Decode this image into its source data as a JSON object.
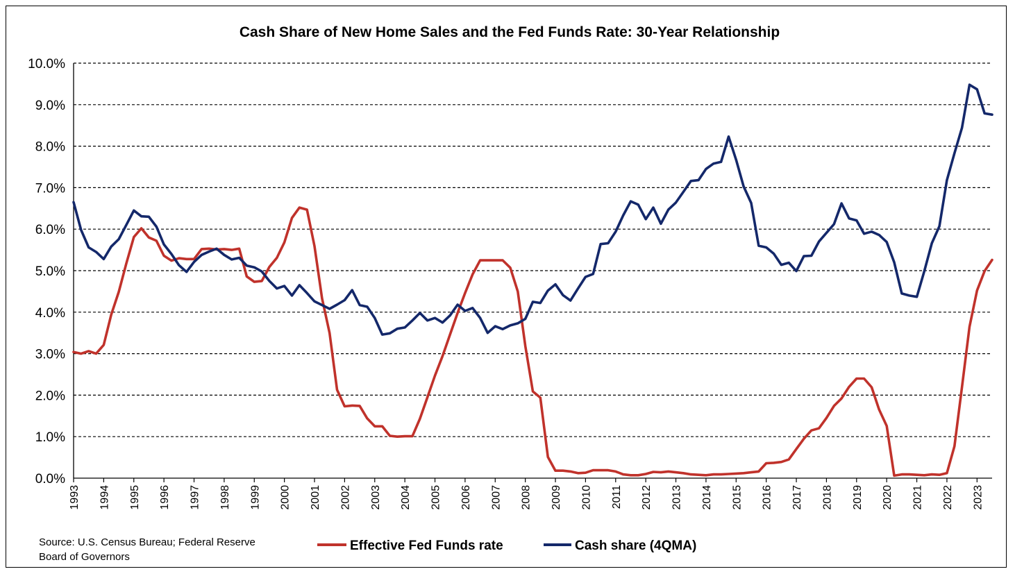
{
  "chart_data": {
    "type": "line",
    "title": "Cash Share of New Home Sales and the Fed Funds Rate: 30-Year Relationship",
    "ylim": [
      0,
      10
    ],
    "y_ticks": [
      "0.0%",
      "1.0%",
      "2.0%",
      "3.0%",
      "4.0%",
      "5.0%",
      "6.0%",
      "7.0%",
      "8.0%",
      "9.0%",
      "10.0%"
    ],
    "x_ticks": [
      "1993",
      "1994",
      "1995",
      "1996",
      "1997",
      "1998",
      "1999",
      "2000",
      "2001",
      "2002",
      "2003",
      "2004",
      "2005",
      "2006",
      "2007",
      "2008",
      "2009",
      "2010",
      "2011",
      "2012",
      "2013",
      "2014",
      "2015",
      "2016",
      "2017",
      "2018",
      "2019",
      "2020",
      "2021",
      "2022",
      "2023"
    ],
    "xlim": [
      1993.0,
      2023.5
    ],
    "grid": "horizontal-dashed",
    "legend_placement": "bottom",
    "source_lines": [
      "Source: U.S. Census Bureau; Federal Reserve",
      "Board of Governors"
    ],
    "series": [
      {
        "name": "Effective Fed Funds rate",
        "color": "#c0322b",
        "x": [
          1993.0,
          1993.25,
          1993.5,
          1993.75,
          1994.0,
          1994.25,
          1994.5,
          1994.75,
          1995.0,
          1995.25,
          1995.5,
          1995.75,
          1996.0,
          1996.25,
          1996.5,
          1996.75,
          1997.0,
          1997.25,
          1997.5,
          1997.75,
          1998.0,
          1998.25,
          1998.5,
          1998.75,
          1999.0,
          1999.25,
          1999.5,
          1999.75,
          2000.0,
          2000.25,
          2000.5,
          2000.75,
          2001.0,
          2001.25,
          2001.5,
          2001.75,
          2002.0,
          2002.25,
          2002.5,
          2002.75,
          2003.0,
          2003.25,
          2003.5,
          2003.75,
          2004.0,
          2004.25,
          2004.5,
          2004.75,
          2005.0,
          2005.25,
          2005.5,
          2005.75,
          2006.0,
          2006.25,
          2006.5,
          2006.75,
          2007.0,
          2007.25,
          2007.5,
          2007.75,
          2008.0,
          2008.25,
          2008.5,
          2008.75,
          2009.0,
          2009.25,
          2009.5,
          2009.75,
          2010.0,
          2010.25,
          2010.5,
          2010.75,
          2011.0,
          2011.25,
          2011.5,
          2011.75,
          2012.0,
          2012.25,
          2012.5,
          2012.75,
          2013.0,
          2013.25,
          2013.5,
          2013.75,
          2014.0,
          2014.25,
          2014.5,
          2014.75,
          2015.0,
          2015.25,
          2015.5,
          2015.75,
          2016.0,
          2016.25,
          2016.5,
          2016.75,
          2017.0,
          2017.25,
          2017.5,
          2017.75,
          2018.0,
          2018.25,
          2018.5,
          2018.75,
          2019.0,
          2019.25,
          2019.5,
          2019.75,
          2020.0,
          2020.25,
          2020.5,
          2020.75,
          2021.0,
          2021.25,
          2021.5,
          2021.75,
          2022.0,
          2022.25,
          2022.5,
          2022.75,
          2023.0,
          2023.25,
          2023.5
        ],
        "values": [
          3.04,
          3.0,
          3.06,
          3.0,
          3.21,
          3.94,
          4.49,
          5.17,
          5.81,
          6.02,
          5.8,
          5.72,
          5.36,
          5.24,
          5.3,
          5.28,
          5.28,
          5.52,
          5.53,
          5.51,
          5.52,
          5.5,
          5.53,
          4.86,
          4.73,
          4.75,
          5.09,
          5.31,
          5.68,
          6.27,
          6.52,
          6.47,
          5.59,
          4.33,
          3.5,
          2.13,
          1.73,
          1.75,
          1.74,
          1.44,
          1.25,
          1.25,
          1.02,
          1.0,
          1.01,
          1.01,
          1.43,
          1.95,
          2.47,
          2.94,
          3.46,
          3.98,
          4.46,
          4.91,
          5.25,
          5.25,
          5.25,
          5.25,
          5.07,
          4.5,
          3.18,
          2.09,
          1.94,
          0.51,
          0.18,
          0.18,
          0.16,
          0.12,
          0.13,
          0.19,
          0.19,
          0.19,
          0.16,
          0.09,
          0.07,
          0.07,
          0.1,
          0.15,
          0.14,
          0.16,
          0.14,
          0.12,
          0.09,
          0.08,
          0.07,
          0.09,
          0.09,
          0.1,
          0.11,
          0.12,
          0.14,
          0.16,
          0.36,
          0.37,
          0.39,
          0.45,
          0.7,
          0.95,
          1.15,
          1.2,
          1.45,
          1.74,
          1.92,
          2.2,
          2.4,
          2.4,
          2.19,
          1.65,
          1.26,
          0.06,
          0.09,
          0.09,
          0.08,
          0.07,
          0.09,
          0.08,
          0.12,
          0.77,
          2.19,
          3.65,
          4.52,
          4.99,
          5.26
        ]
      },
      {
        "name": "Cash share (4QMA)",
        "color": "#14286a",
        "x": [
          1993.0,
          1993.25,
          1993.5,
          1993.75,
          1994.0,
          1994.25,
          1994.5,
          1994.75,
          1995.0,
          1995.25,
          1995.5,
          1995.75,
          1996.0,
          1996.25,
          1996.5,
          1996.75,
          1997.0,
          1997.25,
          1997.5,
          1997.75,
          1998.0,
          1998.25,
          1998.5,
          1998.75,
          1999.0,
          1999.25,
          1999.5,
          1999.75,
          2000.0,
          2000.25,
          2000.5,
          2000.75,
          2001.0,
          2001.25,
          2001.5,
          2001.75,
          2002.0,
          2002.25,
          2002.5,
          2002.75,
          2003.0,
          2003.25,
          2003.5,
          2003.75,
          2004.0,
          2004.25,
          2004.5,
          2004.75,
          2005.0,
          2005.25,
          2005.5,
          2005.75,
          2006.0,
          2006.25,
          2006.5,
          2006.75,
          2007.0,
          2007.25,
          2007.5,
          2007.75,
          2008.0,
          2008.25,
          2008.5,
          2008.75,
          2009.0,
          2009.25,
          2009.5,
          2009.75,
          2010.0,
          2010.25,
          2010.5,
          2010.75,
          2011.0,
          2011.25,
          2011.5,
          2011.75,
          2012.0,
          2012.25,
          2012.5,
          2012.75,
          2013.0,
          2013.25,
          2013.5,
          2013.75,
          2014.0,
          2014.25,
          2014.5,
          2014.75,
          2015.0,
          2015.25,
          2015.5,
          2015.75,
          2016.0,
          2016.25,
          2016.5,
          2016.75,
          2017.0,
          2017.25,
          2017.5,
          2017.75,
          2018.0,
          2018.25,
          2018.5,
          2018.75,
          2019.0,
          2019.25,
          2019.5,
          2019.75,
          2020.0,
          2020.25,
          2020.5,
          2020.75,
          2021.0,
          2021.25,
          2021.5,
          2021.75,
          2022.0,
          2022.25,
          2022.5,
          2022.75,
          2023.0,
          2023.25,
          2023.5
        ],
        "values": [
          6.65,
          5.98,
          5.56,
          5.45,
          5.28,
          5.58,
          5.76,
          6.1,
          6.45,
          6.31,
          6.3,
          6.06,
          5.63,
          5.4,
          5.13,
          4.97,
          5.21,
          5.38,
          5.46,
          5.53,
          5.38,
          5.27,
          5.31,
          5.12,
          5.08,
          4.98,
          4.75,
          4.57,
          4.63,
          4.4,
          4.65,
          4.46,
          4.26,
          4.17,
          4.08,
          4.18,
          4.29,
          4.53,
          4.17,
          4.13,
          3.86,
          3.46,
          3.49,
          3.6,
          3.63,
          3.8,
          3.98,
          3.8,
          3.86,
          3.75,
          3.92,
          4.18,
          4.03,
          4.1,
          3.86,
          3.5,
          3.66,
          3.59,
          3.68,
          3.73,
          3.84,
          4.25,
          4.22,
          4.52,
          4.67,
          4.41,
          4.28,
          4.57,
          4.85,
          4.92,
          5.64,
          5.66,
          5.94,
          6.33,
          6.67,
          6.59,
          6.24,
          6.52,
          6.13,
          6.47,
          6.64,
          6.9,
          7.16,
          7.18,
          7.45,
          7.58,
          7.62,
          8.23,
          7.67,
          7.03,
          6.63,
          5.6,
          5.56,
          5.41,
          5.14,
          5.19,
          4.99,
          5.35,
          5.36,
          5.7,
          5.91,
          6.12,
          6.62,
          6.26,
          6.21,
          5.89,
          5.94,
          5.86,
          5.69,
          5.2,
          4.45,
          4.4,
          4.37,
          4.99,
          5.66,
          6.07,
          7.18,
          7.83,
          8.44,
          9.48,
          9.37,
          8.79,
          8.76
        ]
      }
    ]
  }
}
